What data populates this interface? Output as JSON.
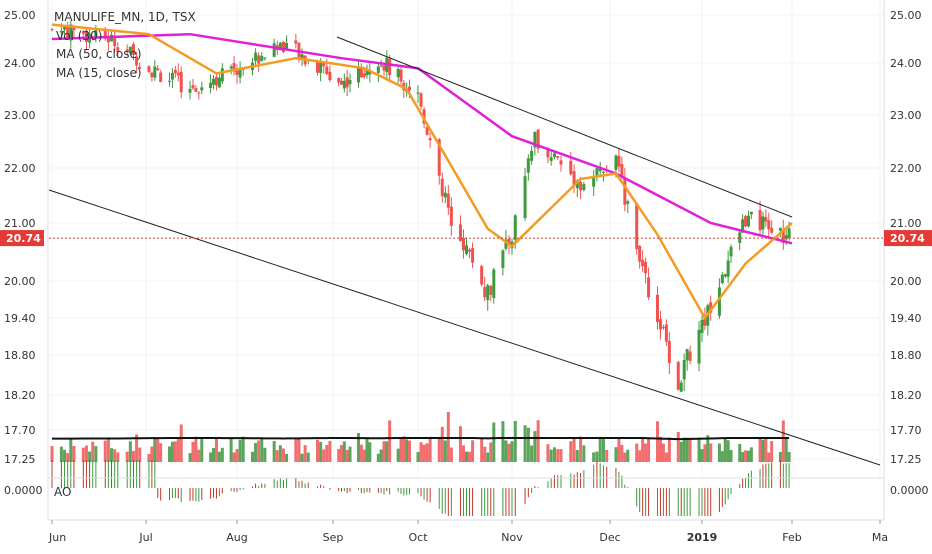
{
  "legend": {
    "symbol": "MANULIFE_MN, 1D, TSX",
    "vol": "Vol (30)",
    "ma50": "MA (50, close)",
    "ma15": "MA (15, close)",
    "ao": "AO"
  },
  "last_price_label": "20.74",
  "colors": {
    "up": "#3d9a3d",
    "down": "#ef5350",
    "ma50": "#e020d8",
    "ma15": "#f59a23",
    "trend": "#222222",
    "last_price": "#e53935",
    "vol_ma": "#111111",
    "grid": "#f0f3f7",
    "axis_text": "#333333"
  },
  "chart_data": {
    "type": "candlestick",
    "title": "MANULIFE_MN, 1D, TSX",
    "y_axis_ticks": [
      "25.00",
      "24.00",
      "23.00",
      "22.00",
      "21.00",
      "20.00",
      "19.40",
      "18.80",
      "18.20",
      "17.70",
      "17.25"
    ],
    "x_axis_ticks": [
      "Jun",
      "Jul",
      "Aug",
      "Sep",
      "Oct",
      "Nov",
      "Dec",
      "2019",
      "Feb",
      "Ma"
    ],
    "ao_axis_label": "0.0000",
    "ao_axis_label_right": "0.0000",
    "last_price": 20.74,
    "approx_close_path": [
      {
        "date": "2018-06-01",
        "close": 24.7
      },
      {
        "date": "2018-06-20",
        "close": 24.5
      },
      {
        "date": "2018-07-02",
        "close": 23.9
      },
      {
        "date": "2018-07-16",
        "close": 23.5
      },
      {
        "date": "2018-08-01",
        "close": 23.9
      },
      {
        "date": "2018-08-16",
        "close": 24.4
      },
      {
        "date": "2018-09-04",
        "close": 23.6
      },
      {
        "date": "2018-09-17",
        "close": 24.1
      },
      {
        "date": "2018-10-01",
        "close": 23.4
      },
      {
        "date": "2018-10-11",
        "close": 21.2
      },
      {
        "date": "2018-10-24",
        "close": 19.8
      },
      {
        "date": "2018-11-01",
        "close": 20.8
      },
      {
        "date": "2018-11-08",
        "close": 22.6
      },
      {
        "date": "2018-11-22",
        "close": 21.7
      },
      {
        "date": "2018-12-03",
        "close": 22.1
      },
      {
        "date": "2018-12-14",
        "close": 19.9
      },
      {
        "date": "2018-12-24",
        "close": 18.4
      },
      {
        "date": "2019-01-04",
        "close": 19.6
      },
      {
        "date": "2019-01-16",
        "close": 21.1
      },
      {
        "date": "2019-01-31",
        "close": 20.74
      }
    ],
    "ma50_path": [
      {
        "date": "2018-06-01",
        "value": 24.5
      },
      {
        "date": "2018-07-16",
        "value": 24.6
      },
      {
        "date": "2018-09-04",
        "value": 24.1
      },
      {
        "date": "2018-10-01",
        "value": 23.9
      },
      {
        "date": "2018-11-01",
        "value": 22.6
      },
      {
        "date": "2018-12-03",
        "value": 21.9
      },
      {
        "date": "2019-01-04",
        "value": 21.0
      },
      {
        "date": "2019-02-01",
        "value": 20.65
      }
    ],
    "ma15_path": [
      {
        "date": "2018-06-01",
        "value": 24.8
      },
      {
        "date": "2018-07-02",
        "value": 24.6
      },
      {
        "date": "2018-07-25",
        "value": 23.8
      },
      {
        "date": "2018-08-20",
        "value": 24.1
      },
      {
        "date": "2018-09-12",
        "value": 23.9
      },
      {
        "date": "2018-09-27",
        "value": 23.5
      },
      {
        "date": "2018-10-24",
        "value": 20.9
      },
      {
        "date": "2018-11-01",
        "value": 20.6
      },
      {
        "date": "2018-11-22",
        "value": 21.8
      },
      {
        "date": "2018-12-03",
        "value": 21.9
      },
      {
        "date": "2018-12-17",
        "value": 20.8
      },
      {
        "date": "2019-01-02",
        "value": 19.4
      },
      {
        "date": "2019-01-16",
        "value": 20.3
      },
      {
        "date": "2019-02-01",
        "value": 21.0
      }
    ],
    "ylim": [
      17.1,
      25.1
    ],
    "ylabel": "",
    "xlabel": "",
    "grid": true
  }
}
